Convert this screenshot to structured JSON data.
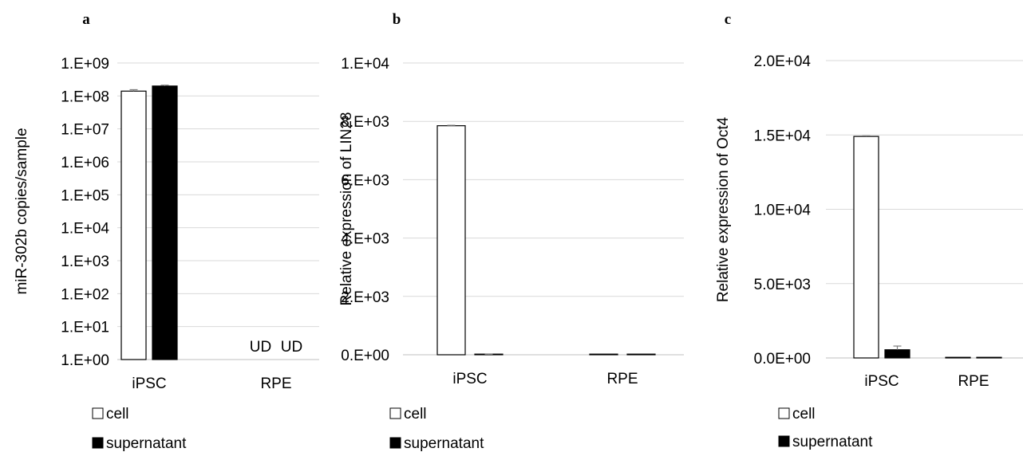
{
  "colors": {
    "cell": "#ffffff",
    "supernatant": "#000000",
    "outline": "#000000",
    "grid": "#d9d9d9",
    "axis": "#bfbfbf",
    "error": "#7f7f7f"
  },
  "chart_data": [
    {
      "panel": "a",
      "type": "bar",
      "yscale": "log",
      "ylabel": "miR-302b copies/sample",
      "categories": [
        "iPSC",
        "RPE"
      ],
      "ylim": [
        1,
        1000000000
      ],
      "yticks": [
        1,
        10,
        100,
        1000,
        10000,
        100000,
        1000000,
        10000000,
        100000000,
        1000000000
      ],
      "ytick_labels": [
        "1.E+00",
        "1.E+01",
        "1.E+02",
        "1.E+03",
        "1.E+04",
        "1.E+05",
        "1.E+06",
        "1.E+07",
        "1.E+08",
        "1.E+09"
      ],
      "series": [
        {
          "name": "cell",
          "values": [
            140000000,
            null
          ],
          "errors": [
            15000000,
            null
          ]
        },
        {
          "name": "supernatant",
          "values": [
            200000000,
            null
          ],
          "errors": [
            12000000,
            null
          ]
        }
      ],
      "annotations": [
        {
          "text": "UD",
          "category": 1,
          "series": 0
        },
        {
          "text": "UD",
          "category": 1,
          "series": 1
        }
      ],
      "legend": [
        "cell",
        "supernatant"
      ],
      "legend_position": "bottom-left",
      "grid": true
    },
    {
      "panel": "b",
      "type": "bar",
      "yscale": "linear",
      "ylabel": "Relative expression of LIN28",
      "categories": [
        "iPSC",
        "RPE"
      ],
      "ylim": [
        0,
        10000
      ],
      "yticks": [
        0,
        2000,
        4000,
        6000,
        8000,
        10000
      ],
      "ytick_labels": [
        "0.E+00",
        "2.E+03",
        "4.E+03",
        "6.E+03",
        "8.E+03",
        "1.E+04"
      ],
      "series": [
        {
          "name": "cell",
          "values": [
            7850,
            1
          ],
          "errors": [
            15,
            0
          ]
        },
        {
          "name": "supernatant",
          "values": [
            5,
            1
          ],
          "errors": [
            15,
            0
          ]
        }
      ],
      "legend": [
        "cell",
        "supernatant"
      ],
      "legend_position": "bottom-left",
      "grid": true
    },
    {
      "panel": "c",
      "type": "bar",
      "yscale": "linear",
      "ylabel": "Relative expression of Oct4",
      "categories": [
        "iPSC",
        "RPE"
      ],
      "ylim": [
        0,
        20000
      ],
      "yticks": [
        0,
        5000,
        10000,
        15000,
        20000
      ],
      "ytick_labels": [
        "0.0E+00",
        "5.0E+03",
        "1.0E+04",
        "1.5E+04",
        "2.0E+04"
      ],
      "series": [
        {
          "name": "cell",
          "values": [
            14900,
            1
          ],
          "errors": [
            40,
            0
          ]
        },
        {
          "name": "supernatant",
          "values": [
            550,
            1
          ],
          "errors": [
            250,
            0
          ]
        }
      ],
      "legend": [
        "cell",
        "supernatant"
      ],
      "legend_position": "bottom-left",
      "grid": true
    }
  ]
}
